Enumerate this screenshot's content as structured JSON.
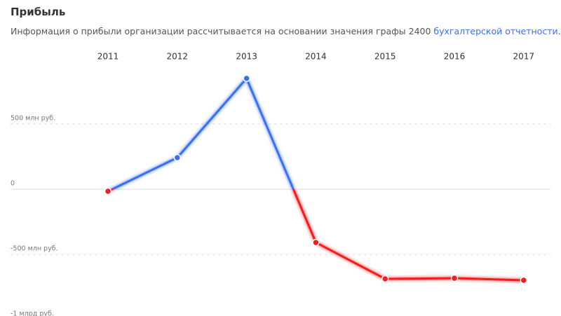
{
  "chart_data": {
    "type": "line",
    "title": "Прибыль",
    "subtitle_parts": [
      "Информация о прибыли организации рассчитывается на основании значения графы 2400 ",
      "бухгалтерской отчетности",
      "."
    ],
    "categories": [
      "2011",
      "2012",
      "2013",
      "2014",
      "2015",
      "2016",
      "2017"
    ],
    "series": [
      {
        "values": [
          -16,
          242,
          850,
          -409,
          -688,
          -683,
          -699
        ]
      }
    ],
    "positive_color": "#3b6ff5",
    "negative_color": "#f51e1e",
    "ylim": [
      -1000,
      1000
    ],
    "yticks": [
      {
        "value": -1000,
        "label": "-1 млрд руб."
      },
      {
        "value": -500,
        "label": "-500 млн руб."
      },
      0,
      {
        "value": 500,
        "label": "500 млн руб."
      }
    ],
    "grid": true
  }
}
